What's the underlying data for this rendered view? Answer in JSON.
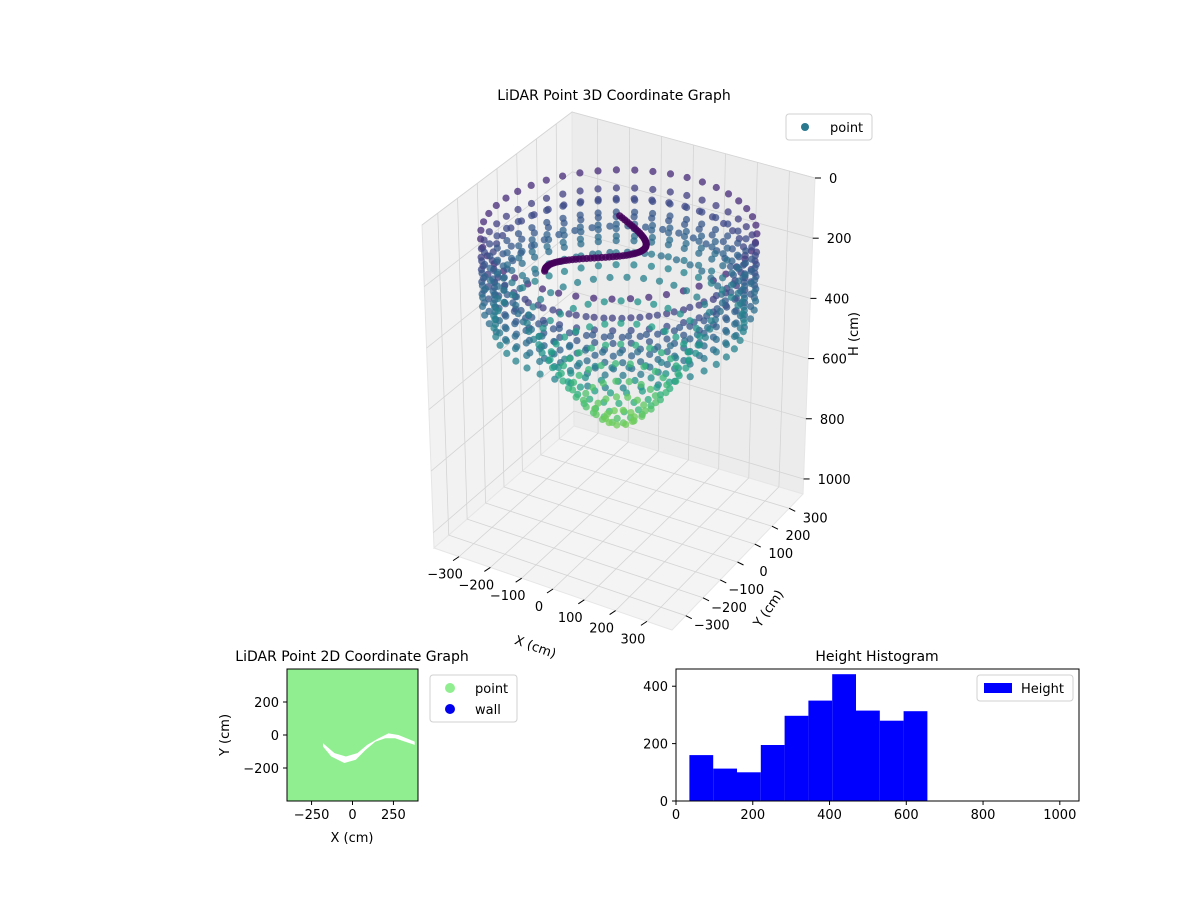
{
  "chart_data": [
    {
      "type": "scatter3d",
      "title": "LiDAR Point 3D Coordinate Graph",
      "xlabel": "X (cm)",
      "ylabel": "Y (cm)",
      "zlabel": "H (cm)",
      "xlim": [
        -380,
        380
      ],
      "ylim": [
        -380,
        380
      ],
      "zlim": [
        0,
        1050
      ],
      "z_inverted": true,
      "xticks": [
        -300,
        -200,
        -100,
        0,
        100,
        200,
        300
      ],
      "yticks": [
        -300,
        -200,
        -100,
        0,
        100,
        200,
        300
      ],
      "zticks": [
        0,
        200,
        400,
        600,
        800,
        1000
      ],
      "legend": {
        "position": "top-right",
        "entries": [
          "point"
        ]
      },
      "colormap": "viridis",
      "series": [
        {
          "name": "point",
          "color": "#2a788e",
          "shape": "bowl",
          "radius_range": [
            0,
            380
          ],
          "height_range": [
            0,
            1000
          ]
        }
      ]
    },
    {
      "type": "scatter",
      "title": "LiDAR Point 2D Coordinate Graph",
      "xlabel": "X (cm)",
      "ylabel": "Y (cm)",
      "xlim": [
        -400,
        400
      ],
      "ylim": [
        -400,
        400
      ],
      "xticks": [
        -250,
        0,
        250
      ],
      "yticks": [
        -200,
        0,
        200
      ],
      "legend": {
        "position": "outside-right",
        "entries": [
          "point",
          "wall"
        ]
      },
      "series": [
        {
          "name": "point",
          "color": "#90ee90"
        },
        {
          "name": "wall",
          "color": "#0000ee"
        }
      ],
      "gap_region": [
        [
          -180,
          -70
        ],
        [
          -130,
          -130
        ],
        [
          -50,
          -170
        ],
        [
          20,
          -150
        ],
        [
          80,
          -90
        ],
        [
          140,
          -40
        ],
        [
          200,
          -20
        ],
        [
          260,
          -20
        ],
        [
          320,
          -40
        ],
        [
          380,
          -60
        ],
        [
          380,
          -40
        ],
        [
          330,
          -20
        ],
        [
          280,
          0
        ],
        [
          220,
          10
        ],
        [
          160,
          -20
        ],
        [
          90,
          -60
        ],
        [
          30,
          -110
        ],
        [
          -40,
          -130
        ],
        [
          -110,
          -110
        ],
        [
          -180,
          -50
        ]
      ]
    },
    {
      "type": "histogram",
      "title": "Height Histogram",
      "xlim": [
        0,
        1050
      ],
      "ylim": [
        0,
        460
      ],
      "xticks": [
        0,
        200,
        400,
        600,
        800,
        1000
      ],
      "yticks": [
        0,
        200,
        400
      ],
      "legend": {
        "position": "top-right",
        "entries": [
          "Height"
        ]
      },
      "color": "#0000ff",
      "bin_edges": [
        35,
        97,
        159,
        221,
        283,
        345,
        407,
        469,
        531,
        593,
        655
      ],
      "counts": [
        160,
        113,
        100,
        195,
        297,
        350,
        442,
        315,
        280,
        313
      ],
      "series": [
        {
          "name": "Height"
        }
      ]
    }
  ]
}
